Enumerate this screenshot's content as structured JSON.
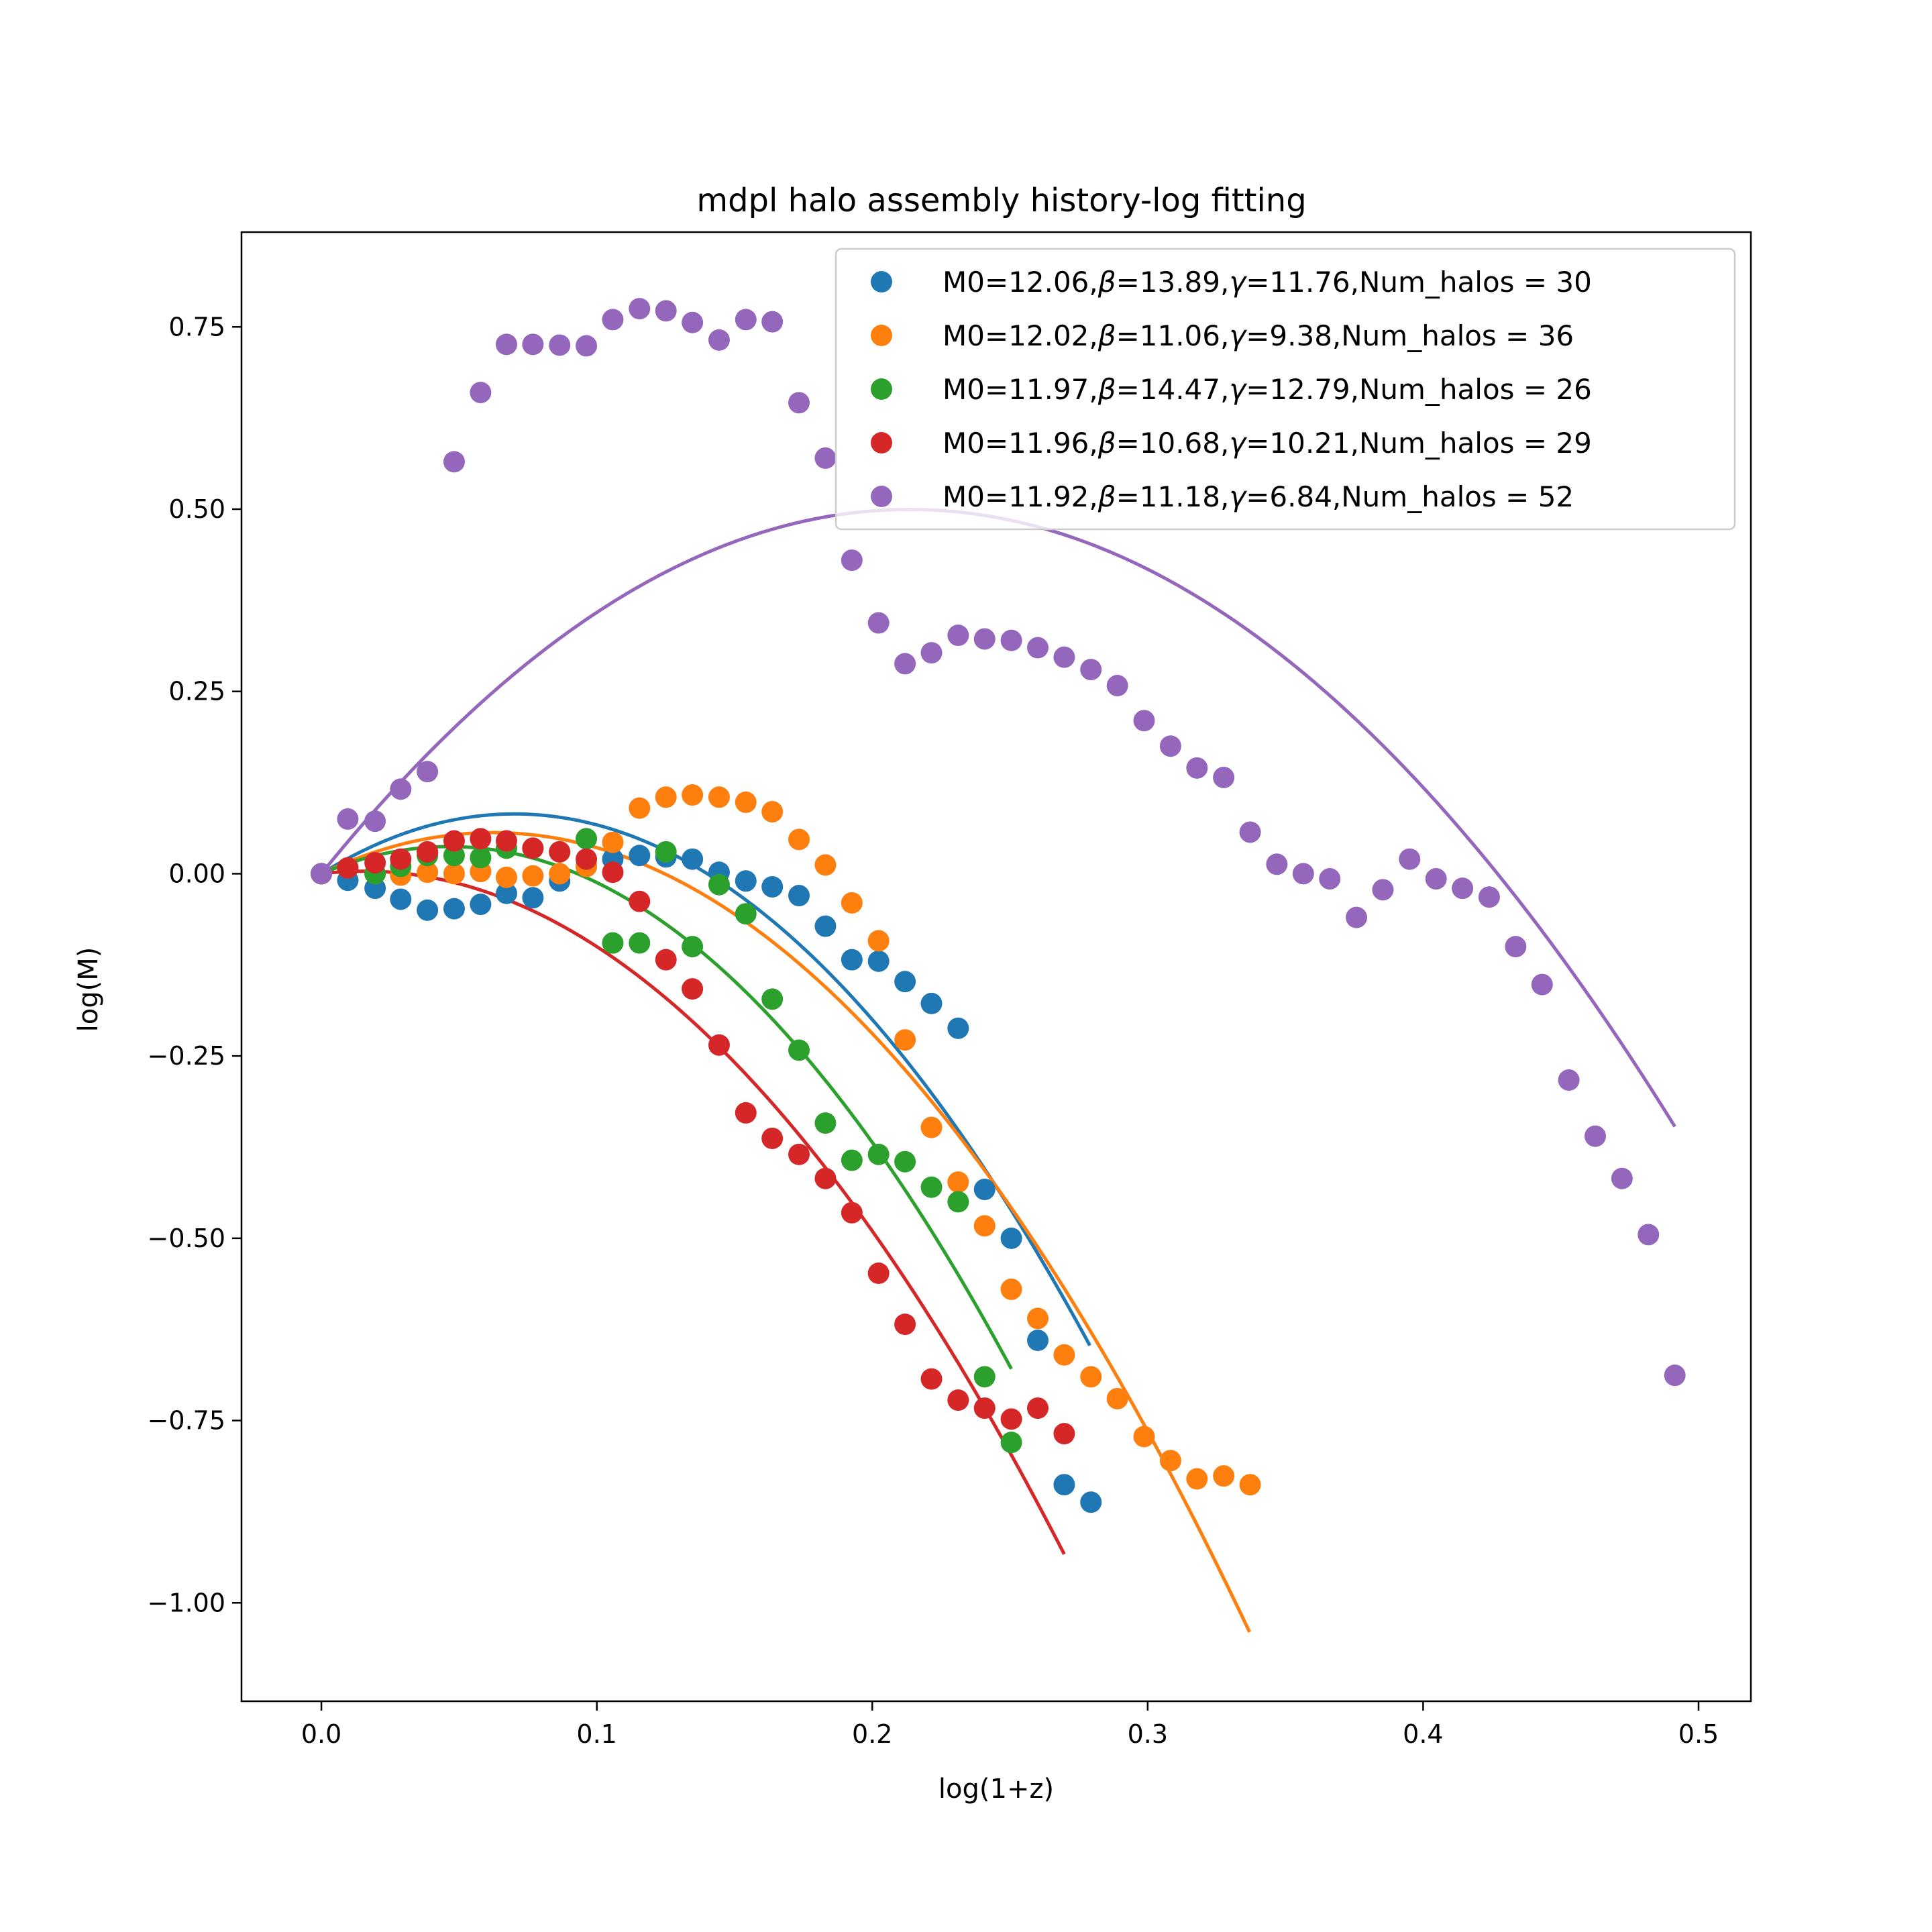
{
  "chart_data": {
    "type": "scatter",
    "title": "mdpl halo assembly history-log fitting",
    "xlabel": "log(1+z)",
    "ylabel": "log(M)",
    "xlim": [
      -0.029,
      0.519
    ],
    "ylim": [
      -1.135,
      0.88
    ],
    "xticks": [
      0.0,
      0.1,
      0.2,
      0.3,
      0.4,
      0.5
    ],
    "xtick_labels": [
      "0.0",
      "0.1",
      "0.2",
      "0.3",
      "0.4",
      "0.5"
    ],
    "yticks": [
      0.75,
      0.5,
      0.25,
      0.0,
      -0.25,
      -0.5,
      -0.75,
      -1.0
    ],
    "ytick_labels": [
      "0.75",
      "0.50",
      "0.25",
      "0.00",
      "−0.25",
      "−0.50",
      "−0.75",
      "−1.00"
    ],
    "grid": false,
    "legend_position": "top-right",
    "series": [
      {
        "name": "M0=12.06,β=13.89,γ=11.76,Num_halos = 30",
        "legend": {
          "m0": "M0=12.06,",
          "beta": "β",
          "beta_val": "=13.89,",
          "gamma": "γ",
          "gamma_val": "=11.76,Num_halos = 30"
        },
        "color": "#1f77b4",
        "points": [
          [
            0.0,
            0.0
          ],
          [
            0.0096,
            -0.009
          ],
          [
            0.0195,
            -0.02
          ],
          [
            0.0288,
            -0.035
          ],
          [
            0.0385,
            -0.05
          ],
          [
            0.0482,
            -0.048
          ],
          [
            0.0578,
            -0.042
          ],
          [
            0.0672,
            -0.027
          ],
          [
            0.0768,
            -0.033
          ],
          [
            0.0865,
            -0.01
          ],
          [
            0.0962,
            0.01
          ],
          [
            0.1058,
            0.02
          ],
          [
            0.1155,
            0.025
          ],
          [
            0.1251,
            0.023
          ],
          [
            0.1347,
            0.02
          ],
          [
            0.1444,
            0.002
          ],
          [
            0.1541,
            -0.01
          ],
          [
            0.1637,
            -0.018
          ],
          [
            0.1734,
            -0.03
          ],
          [
            0.183,
            -0.072
          ],
          [
            0.1926,
            -0.118
          ],
          [
            0.2023,
            -0.12
          ],
          [
            0.2119,
            -0.148
          ],
          [
            0.2215,
            -0.178
          ],
          [
            0.2312,
            -0.212
          ],
          [
            0.2408,
            -0.433
          ],
          [
            0.2505,
            -0.5
          ],
          [
            0.2601,
            -0.64
          ],
          [
            0.2697,
            -0.838
          ],
          [
            0.2794,
            -0.862
          ]
        ],
        "fit": {
          "a": 2.34,
          "b": -16.7,
          "xmax": 0.279
        }
      },
      {
        "name": "M0=12.02,β=11.06,γ=9.38,Num_halos = 36",
        "legend": {
          "m0": "M0=12.02,",
          "beta": "β",
          "beta_val": "=11.06,",
          "gamma": "γ",
          "gamma_val": "=9.38,Num_halos = 36"
        },
        "color": "#ff7f0e",
        "points": [
          [
            0.0,
            0.0
          ],
          [
            0.0096,
            0.008
          ],
          [
            0.0195,
            0.0
          ],
          [
            0.0288,
            -0.002
          ],
          [
            0.0385,
            0.002
          ],
          [
            0.0482,
            0.0
          ],
          [
            0.0578,
            0.003
          ],
          [
            0.0672,
            -0.005
          ],
          [
            0.0768,
            -0.003
          ],
          [
            0.0865,
            0.0
          ],
          [
            0.0962,
            0.01
          ],
          [
            0.1058,
            0.043
          ],
          [
            0.1155,
            0.09
          ],
          [
            0.1251,
            0.105
          ],
          [
            0.1347,
            0.108
          ],
          [
            0.1444,
            0.105
          ],
          [
            0.1541,
            0.098
          ],
          [
            0.1637,
            0.085
          ],
          [
            0.1734,
            0.047
          ],
          [
            0.183,
            0.012
          ],
          [
            0.1926,
            -0.04
          ],
          [
            0.2023,
            -0.092
          ],
          [
            0.2119,
            -0.228
          ],
          [
            0.2215,
            -0.348
          ],
          [
            0.2312,
            -0.423
          ],
          [
            0.2408,
            -0.483
          ],
          [
            0.2505,
            -0.57
          ],
          [
            0.2601,
            -0.61
          ],
          [
            0.2697,
            -0.66
          ],
          [
            0.2794,
            -0.69
          ],
          [
            0.289,
            -0.72
          ],
          [
            0.2987,
            -0.772
          ],
          [
            0.3083,
            -0.805
          ],
          [
            0.3179,
            -0.83
          ],
          [
            0.3276,
            -0.826
          ],
          [
            0.3372,
            -0.838
          ]
        ],
        "fit": {
          "a": 1.81,
          "b": -14.53,
          "xmax": 0.337
        }
      },
      {
        "name": "M0=11.97,β=14.47,γ=12.79,Num_halos = 26",
        "legend": {
          "m0": "M0=11.97,",
          "beta": "β",
          "beta_val": "=14.47,",
          "gamma": "γ",
          "gamma_val": "=12.79,Num_halos = 26"
        },
        "color": "#2ca02c",
        "points": [
          [
            0.0,
            0.0
          ],
          [
            0.0096,
            0.008
          ],
          [
            0.0195,
            0.0
          ],
          [
            0.0288,
            0.01
          ],
          [
            0.0385,
            0.025
          ],
          [
            0.0482,
            0.025
          ],
          [
            0.0578,
            0.022
          ],
          [
            0.0672,
            0.035
          ],
          [
            0.0768,
            0.035
          ],
          [
            0.0865,
            0.03
          ],
          [
            0.0962,
            0.048
          ],
          [
            0.1058,
            -0.095
          ],
          [
            0.1155,
            -0.095
          ],
          [
            0.1251,
            0.03
          ],
          [
            0.1347,
            -0.1
          ],
          [
            0.1444,
            -0.015
          ],
          [
            0.1541,
            -0.055
          ],
          [
            0.1637,
            -0.172
          ],
          [
            0.1734,
            -0.242
          ],
          [
            0.183,
            -0.342
          ],
          [
            0.1926,
            -0.393
          ],
          [
            0.2023,
            -0.385
          ],
          [
            0.2119,
            -0.395
          ],
          [
            0.2215,
            -0.43
          ],
          [
            0.2312,
            -0.45
          ],
          [
            0.2408,
            -0.69
          ],
          [
            0.2505,
            -0.78
          ]
        ],
        "fit": {
          "a": 1.6,
          "b": -17.21,
          "xmax": 0.2505
        }
      },
      {
        "name": "M0=11.96,β=10.68,γ=10.21,Num_halos = 29",
        "legend": {
          "m0": "M0=11.96,",
          "beta": "β",
          "beta_val": "=10.68,",
          "gamma": "γ",
          "gamma_val": "=10.21,Num_halos = 29"
        },
        "color": "#d62728",
        "points": [
          [
            0.0,
            0.0
          ],
          [
            0.0096,
            0.008
          ],
          [
            0.0195,
            0.015
          ],
          [
            0.0288,
            0.02
          ],
          [
            0.0385,
            0.03
          ],
          [
            0.0482,
            0.045
          ],
          [
            0.0578,
            0.048
          ],
          [
            0.0672,
            0.045
          ],
          [
            0.0768,
            0.035
          ],
          [
            0.0865,
            0.03
          ],
          [
            0.0962,
            0.02
          ],
          [
            0.1058,
            0.002
          ],
          [
            0.1155,
            -0.038
          ],
          [
            0.1251,
            -0.118
          ],
          [
            0.1347,
            -0.158
          ],
          [
            0.1444,
            -0.235
          ],
          [
            0.1541,
            -0.328
          ],
          [
            0.1637,
            -0.363
          ],
          [
            0.1734,
            -0.385
          ],
          [
            0.183,
            -0.418
          ],
          [
            0.1926,
            -0.465
          ],
          [
            0.2023,
            -0.548
          ],
          [
            0.2119,
            -0.618
          ],
          [
            0.2215,
            -0.693
          ],
          [
            0.2312,
            -0.722
          ],
          [
            0.2408,
            -0.733
          ],
          [
            0.2505,
            -0.748
          ],
          [
            0.2601,
            -0.733
          ],
          [
            0.2697,
            -0.768
          ]
        ],
        "fit": {
          "a": 0.45,
          "b": -14.5,
          "xmax": 0.2697
        }
      },
      {
        "name": "M0=11.92,β=11.18,γ=6.84,Num_halos = 52",
        "legend": {
          "m0": "M0=11.92,",
          "beta": "β",
          "beta_val": "=11.18,",
          "gamma": "γ",
          "gamma_val": "=6.84,Num_halos = 52"
        },
        "color": "#9467bd",
        "points": [
          [
            0.0,
            0.0
          ],
          [
            0.0096,
            0.075
          ],
          [
            0.0195,
            0.072
          ],
          [
            0.0288,
            0.116
          ],
          [
            0.0385,
            0.14
          ],
          [
            0.0482,
            0.565
          ],
          [
            0.0578,
            0.66
          ],
          [
            0.0672,
            0.726
          ],
          [
            0.0768,
            0.726
          ],
          [
            0.0865,
            0.725
          ],
          [
            0.0962,
            0.724
          ],
          [
            0.1058,
            0.76
          ],
          [
            0.1155,
            0.775
          ],
          [
            0.1251,
            0.772
          ],
          [
            0.1347,
            0.756
          ],
          [
            0.1444,
            0.732
          ],
          [
            0.1541,
            0.76
          ],
          [
            0.1637,
            0.757
          ],
          [
            0.1734,
            0.646
          ],
          [
            0.183,
            0.57
          ],
          [
            0.1926,
            0.43
          ],
          [
            0.2023,
            0.344
          ],
          [
            0.2119,
            0.288
          ],
          [
            0.2215,
            0.303
          ],
          [
            0.2312,
            0.327
          ],
          [
            0.2408,
            0.322
          ],
          [
            0.2505,
            0.32
          ],
          [
            0.2601,
            0.31
          ],
          [
            0.2697,
            0.297
          ],
          [
            0.2794,
            0.28
          ],
          [
            0.289,
            0.258
          ],
          [
            0.2987,
            0.21
          ],
          [
            0.3083,
            0.175
          ],
          [
            0.3179,
            0.145
          ],
          [
            0.3276,
            0.132
          ],
          [
            0.3372,
            0.057
          ],
          [
            0.3469,
            0.013
          ],
          [
            0.3565,
            0.0
          ],
          [
            0.3661,
            -0.007
          ],
          [
            0.3758,
            -0.06
          ],
          [
            0.3854,
            -0.022
          ],
          [
            0.3951,
            0.02
          ],
          [
            0.4047,
            -0.007
          ],
          [
            0.4143,
            -0.02
          ],
          [
            0.424,
            -0.032
          ],
          [
            0.4336,
            -0.1
          ],
          [
            0.4432,
            -0.152
          ],
          [
            0.4529,
            -0.283
          ],
          [
            0.4625,
            -0.36
          ],
          [
            0.4722,
            -0.418
          ],
          [
            0.4818,
            -0.495
          ],
          [
            0.4914,
            -0.688
          ]
        ],
        "fit": {
          "a": 4.68,
          "b": -10.96,
          "xmax": 0.4914
        }
      }
    ]
  }
}
